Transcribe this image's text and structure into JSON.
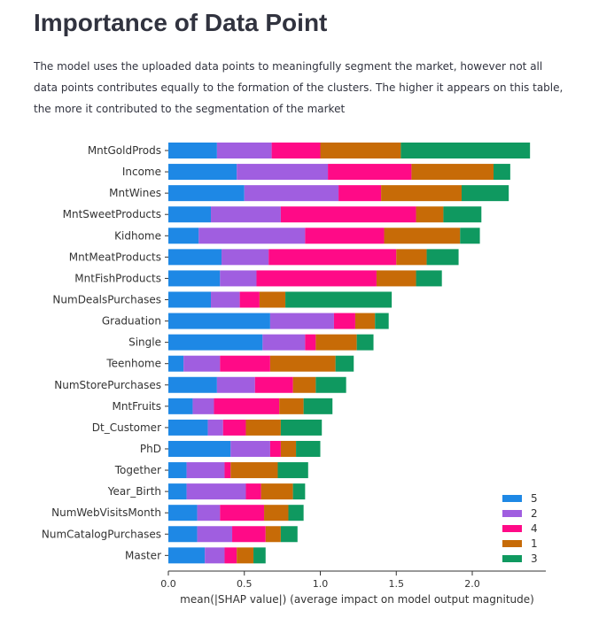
{
  "page": {
    "title": "Importance of Data Point",
    "description": "The model uses the uploaded data points to meaningfully segment the market, however not all data points contributes equally to the formation of the clusters. The higher it appears on this table, the more it contributed to the segmentation of the market"
  },
  "chart_data": {
    "type": "bar",
    "orientation": "horizontal",
    "stacked": true,
    "title": "",
    "xlabel": "mean(|SHAP value|) (average impact on model output magnitude)",
    "ylabel": "",
    "xlim": [
      0,
      2.45
    ],
    "xticks": [
      0.0,
      0.5,
      1.0,
      1.5,
      2.0
    ],
    "xtick_labels": [
      "0.0",
      "0.5",
      "1.0",
      "1.5",
      "2.0"
    ],
    "grid": false,
    "legend_position": "bottom-right",
    "categories": [
      "MntGoldProds",
      "Income",
      "MntWines",
      "MntSweetProducts",
      "Kidhome",
      "MntMeatProducts",
      "MntFishProducts",
      "NumDealsPurchases",
      "Graduation",
      "Single",
      "Teenhome",
      "NumStorePurchases",
      "MntFruits",
      "Dt_Customer",
      "PhD",
      "Together",
      "Year_Birth",
      "NumWebVisitsMonth",
      "NumCatalogPurchases",
      "Master"
    ],
    "series": [
      {
        "name": "5",
        "color": "#1e88e5",
        "values": [
          0.32,
          0.45,
          0.5,
          0.28,
          0.2,
          0.35,
          0.34,
          0.28,
          0.67,
          0.62,
          0.1,
          0.32,
          0.16,
          0.26,
          0.41,
          0.12,
          0.12,
          0.19,
          0.19,
          0.24
        ]
      },
      {
        "name": "2",
        "color": "#a05ee0",
        "values": [
          0.36,
          0.6,
          0.62,
          0.46,
          0.7,
          0.31,
          0.24,
          0.19,
          0.42,
          0.28,
          0.24,
          0.25,
          0.14,
          0.1,
          0.26,
          0.25,
          0.39,
          0.15,
          0.23,
          0.13
        ]
      },
      {
        "name": "4",
        "color": "#ff0a87",
        "values": [
          0.32,
          0.55,
          0.28,
          0.89,
          0.52,
          0.84,
          0.79,
          0.13,
          0.14,
          0.07,
          0.33,
          0.25,
          0.43,
          0.15,
          0.07,
          0.04,
          0.1,
          0.29,
          0.22,
          0.08
        ]
      },
      {
        "name": "1",
        "color": "#c76b07",
        "values": [
          0.53,
          0.54,
          0.53,
          0.18,
          0.5,
          0.2,
          0.26,
          0.17,
          0.13,
          0.27,
          0.43,
          0.15,
          0.16,
          0.23,
          0.1,
          0.31,
          0.21,
          0.16,
          0.1,
          0.11
        ]
      },
      {
        "name": "3",
        "color": "#0f9960",
        "values": [
          0.85,
          0.11,
          0.31,
          0.25,
          0.13,
          0.21,
          0.17,
          0.7,
          0.09,
          0.11,
          0.12,
          0.2,
          0.19,
          0.27,
          0.16,
          0.2,
          0.08,
          0.1,
          0.11,
          0.08
        ]
      }
    ],
    "legend_order": [
      "5",
      "2",
      "4",
      "1",
      "3"
    ]
  }
}
